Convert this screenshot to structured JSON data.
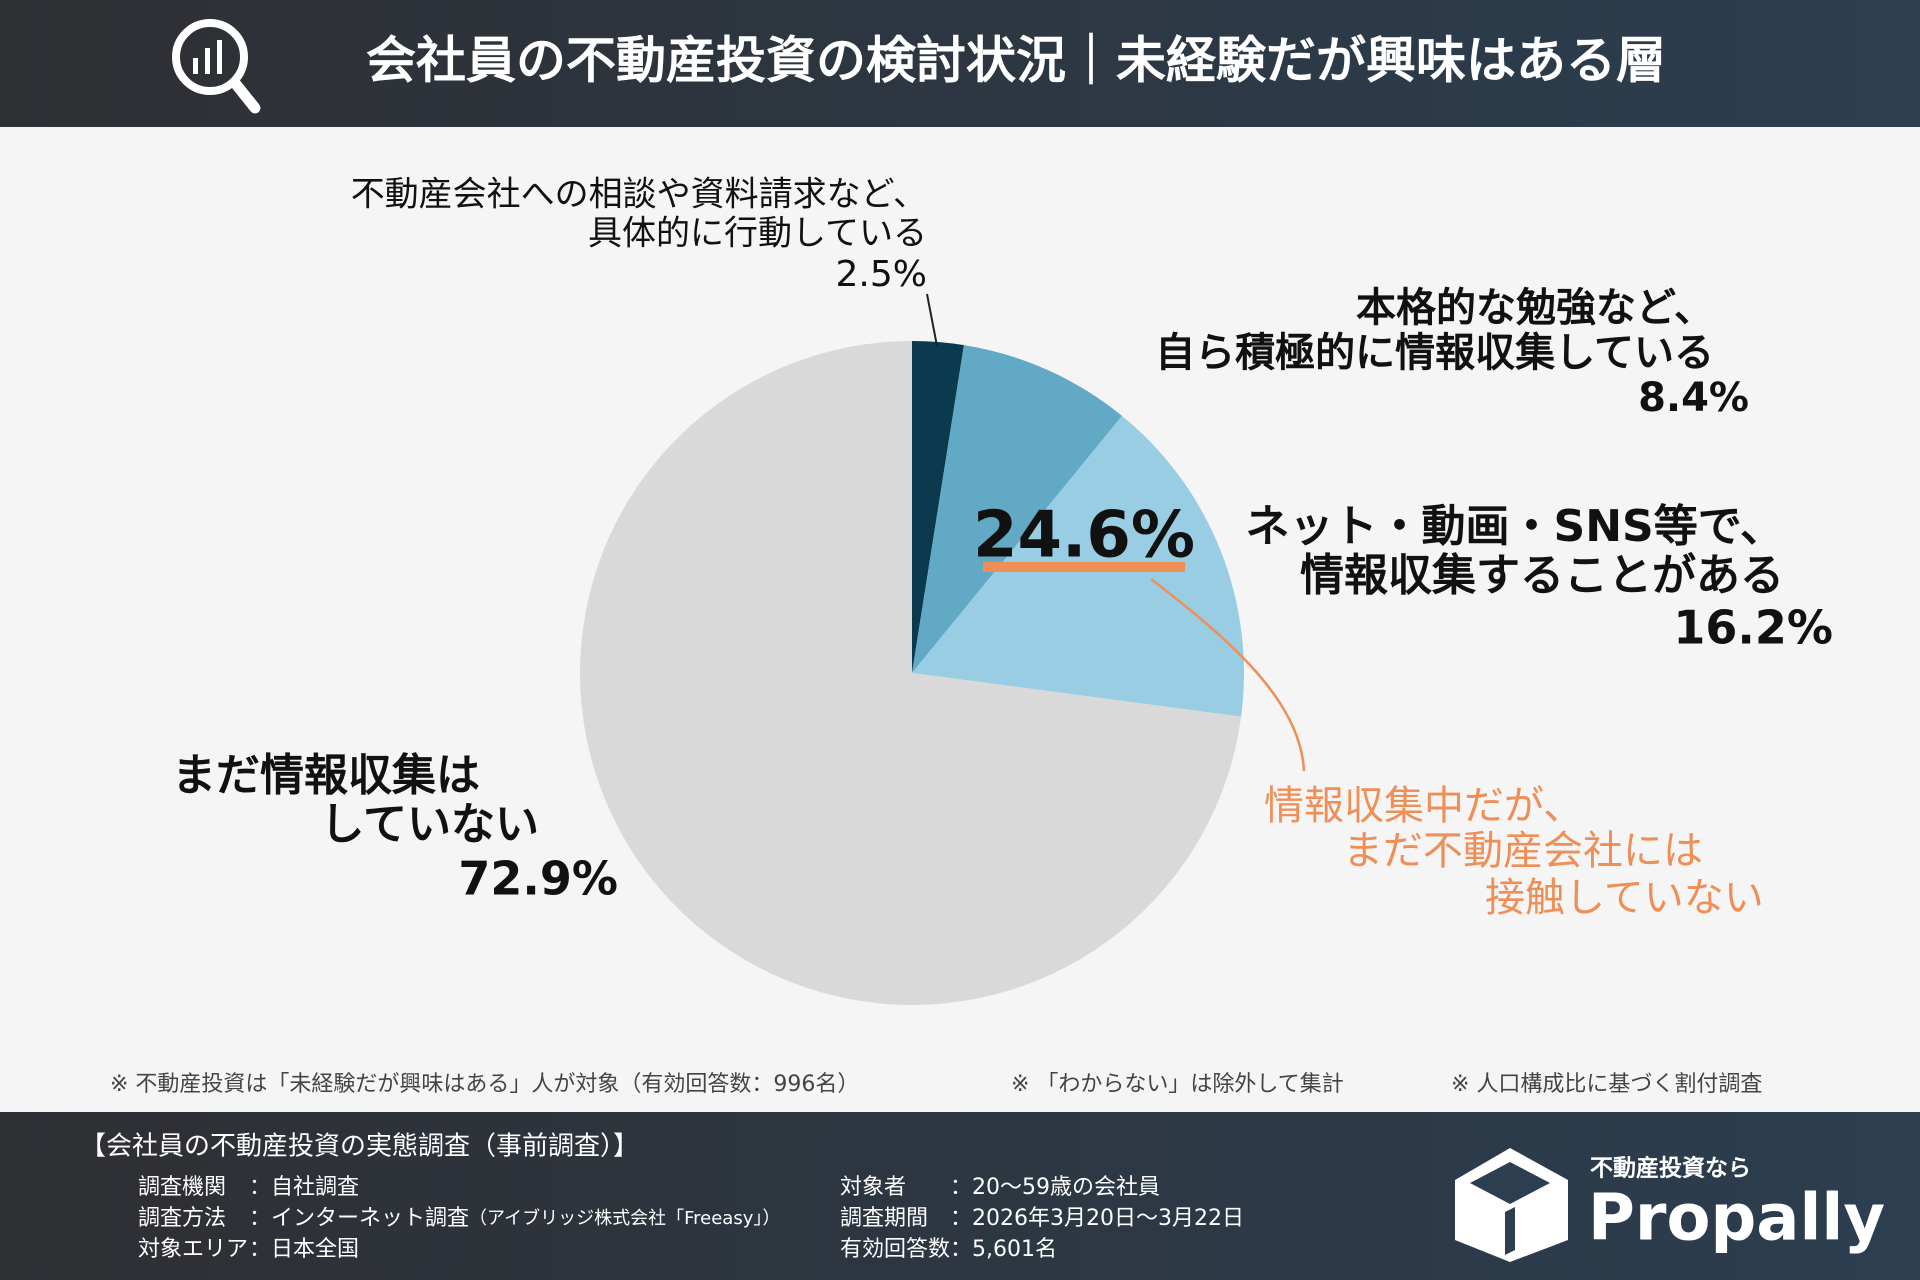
{
  "header": {
    "title": "会社員の不動産投資の検討状況｜未経験だが興味はある層"
  },
  "chart_data": {
    "type": "pie",
    "categories": [
      [
        "不動産会社への相談や資料請求など、",
        "具体的に行動している"
      ],
      [
        "本格的な勉強など、",
        "自ら積極的に情報収集している"
      ],
      [
        "ネット・動画・SNS等で、",
        "情報収集することがある"
      ],
      [
        "まだ情報収集は",
        "していない"
      ]
    ],
    "values": [
      2.5,
      8.4,
      16.2,
      72.9
    ],
    "value_labels": [
      "2.5%",
      "8.4%",
      "16.2%",
      "72.9%"
    ],
    "colors": [
      "#0b3a4f",
      "#62a9c6",
      "#98cde3",
      "#d9d9d9"
    ],
    "annotation": {
      "label": "24.6%",
      "text": [
        "情報収集中だが、",
        "まだ不動産会社には",
        "接触していない"
      ],
      "color": "#ef8f58"
    }
  },
  "notes": [
    "※ 不動産投資は「未経験だが興味はある」人が対象（有効回答数：996名）",
    "※ 「わからない」は除外して集計",
    "※ 人口構成比に基づく割付調査"
  ],
  "footer": {
    "title": "【会社員の不動産投資の実態調査（事前調査）】",
    "left": [
      {
        "label": "調査機関",
        "value": "：自社調査"
      },
      {
        "label": "調査方法",
        "value": "：インターネット調査",
        "note": "（アイブリッジ株式会社「Freeasy」）"
      },
      {
        "label": "対象エリア",
        "value": "：日本全国"
      }
    ],
    "right": [
      {
        "label": "対象者",
        "value": "：20〜59歳の会社員"
      },
      {
        "label": "調査期間",
        "value": "：2026年3月20日〜3月22日"
      },
      {
        "label": "有効回答数",
        "value": "：5,601名"
      }
    ],
    "brand_tagline": "不動産投資なら",
    "brand": "Propally"
  }
}
